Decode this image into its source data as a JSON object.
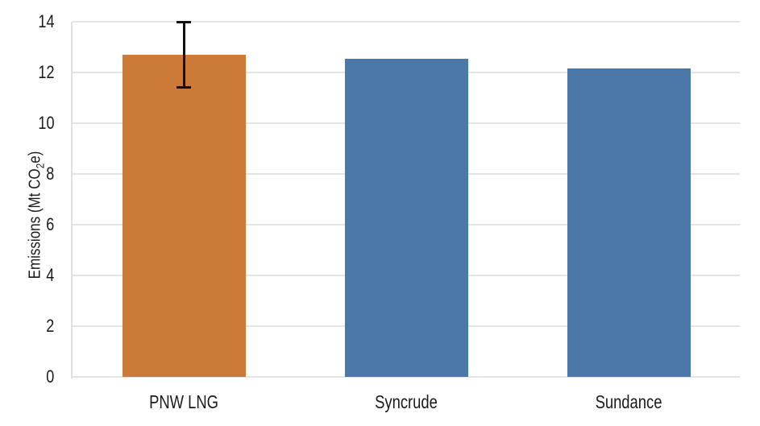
{
  "chart_data": {
    "type": "bar",
    "categories": [
      "PNW LNG",
      "Syncrude",
      "Sundance"
    ],
    "values": [
      12.7,
      12.55,
      12.15
    ],
    "bar_colors": [
      "#cb7a38",
      "#4c78a8",
      "#4c78a8"
    ],
    "error_bars": [
      {
        "category": "PNW LNG",
        "low": 11.4,
        "high": 14.0
      }
    ],
    "title": "",
    "xlabel": "",
    "ylabel": "Emissions (Mt CO₂e)",
    "ylabel_parts": {
      "pre": "Emissions (Mt CO",
      "sub": "2",
      "post": "e)"
    },
    "yticks": [
      0,
      2,
      4,
      6,
      8,
      10,
      12,
      14
    ],
    "ylim": [
      0,
      14
    ],
    "grid": "horizontal",
    "legend": "none",
    "colors": {
      "gridline": "#e4e4e4",
      "axis_spine": "#e0e0e0",
      "text": "#1a1a1a",
      "error_bar": "#111111"
    }
  }
}
